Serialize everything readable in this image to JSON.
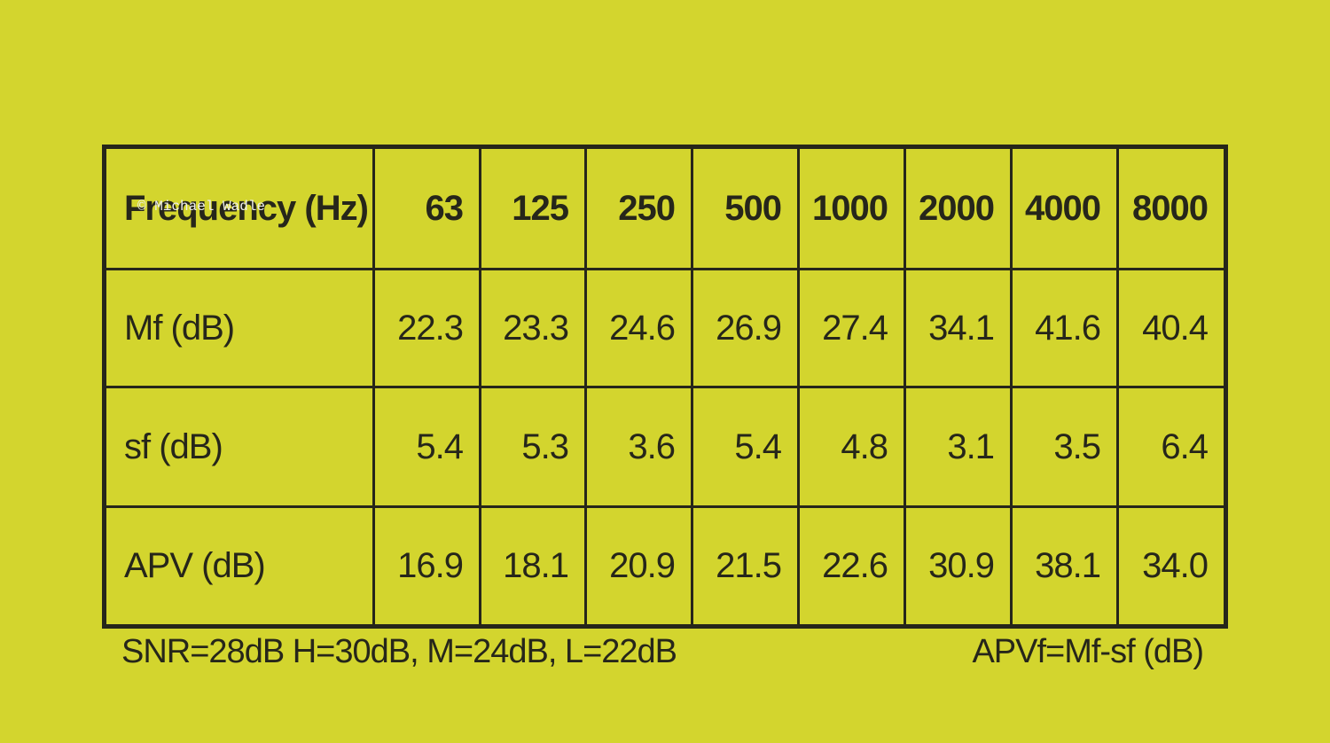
{
  "watermark": "© Michael Wadle",
  "table": {
    "header": [
      "Frequency (Hz)",
      "63",
      "125",
      "250",
      "500",
      "1000",
      "2000",
      "4000",
      "8000"
    ],
    "rows": [
      [
        "Mf (dB)",
        "22.3",
        "23.3",
        "24.6",
        "26.9",
        "27.4",
        "34.1",
        "41.6",
        "40.4"
      ],
      [
        "sf (dB)",
        "5.4",
        "5.3",
        "3.6",
        "5.4",
        "4.8",
        "3.1",
        "3.5",
        "6.4"
      ],
      [
        "APV (dB)",
        "16.9",
        "18.1",
        "20.9",
        "21.5",
        "22.6",
        "30.9",
        "38.1",
        "34.0"
      ]
    ]
  },
  "footnotes": {
    "left": "SNR=28dB H=30dB, M=24dB, L=22dB",
    "right": "APVf=Mf-sf (dB)"
  }
}
